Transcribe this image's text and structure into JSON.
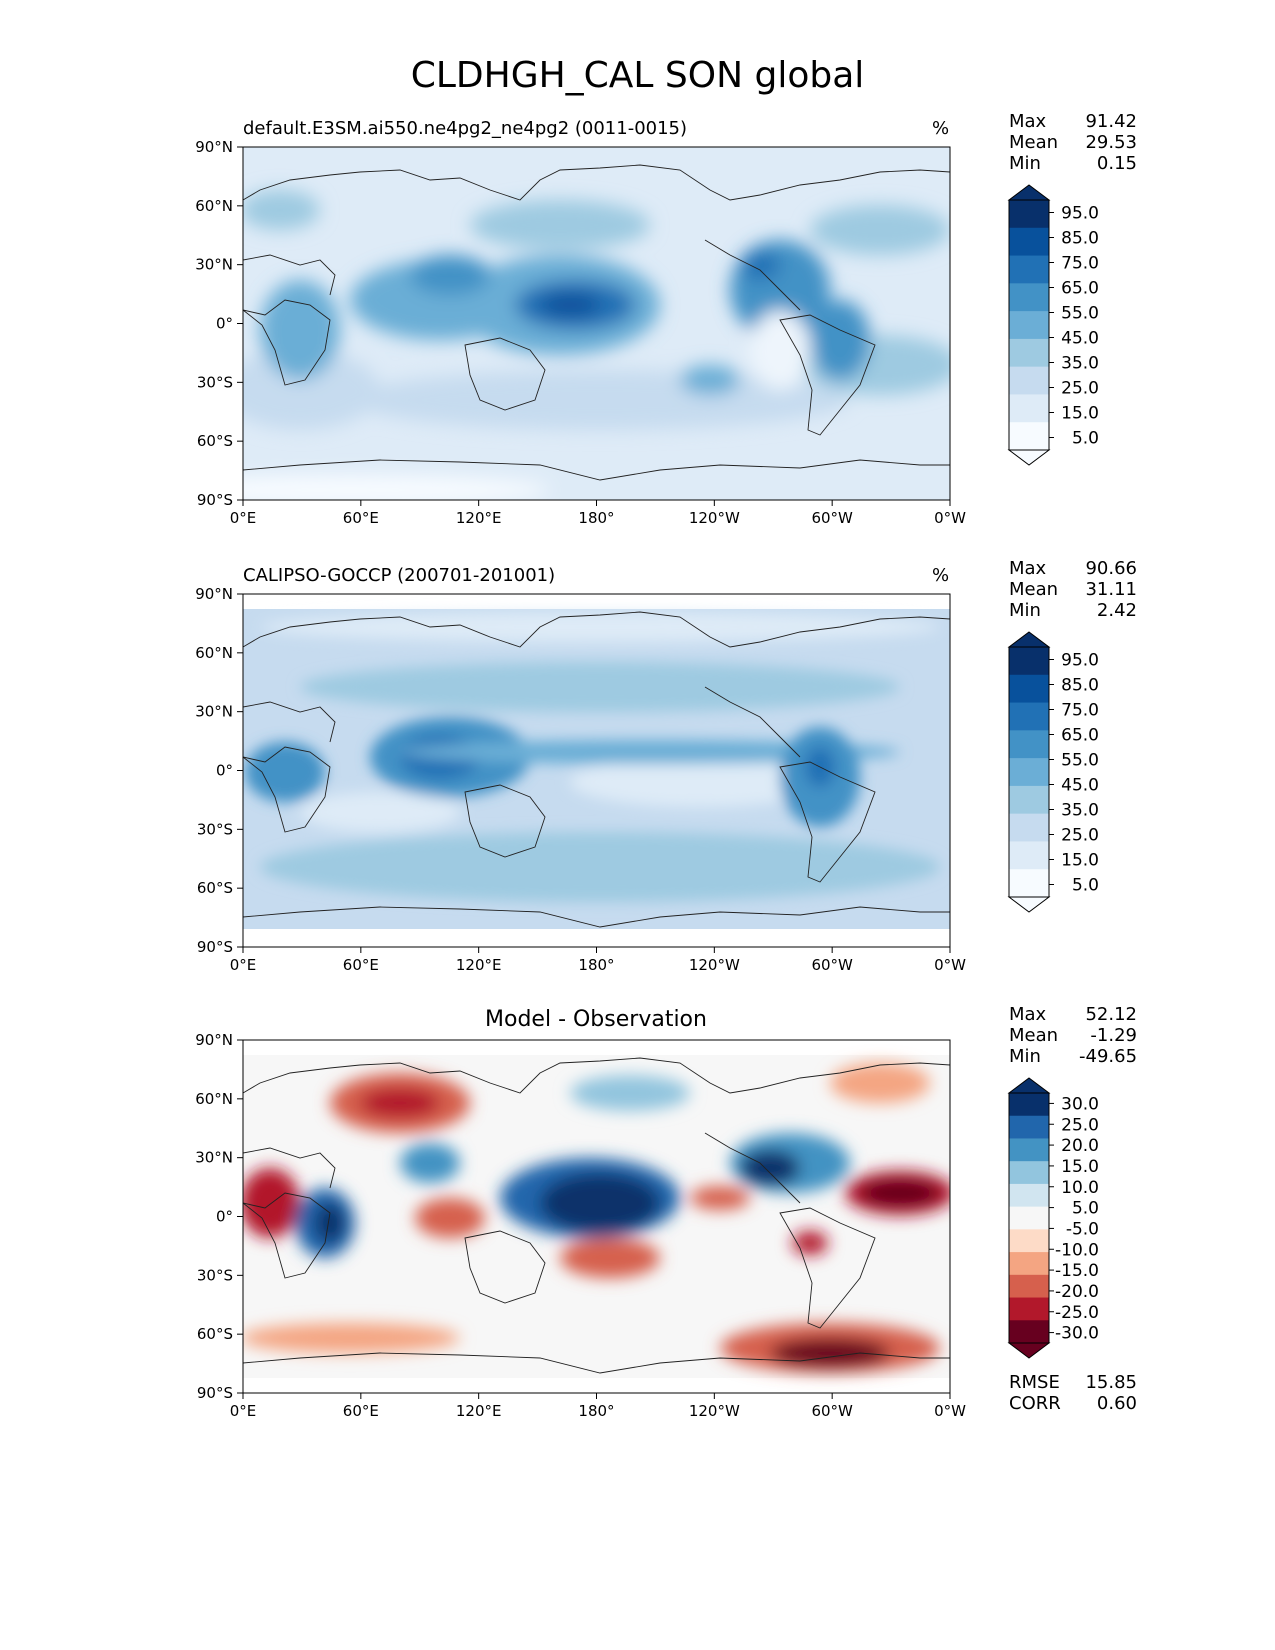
{
  "title": "CLDHGH_CAL SON global",
  "panels": [
    {
      "title_left": "default.E3SM.ai550.ne4pg2_ne4pg2 (0011-0015)",
      "title_right": "%",
      "title_center": "",
      "stats": [
        {
          "label": "Max",
          "value": "91.42"
        },
        {
          "label": "Mean",
          "value": "29.53"
        },
        {
          "label": "Min",
          "value": "0.15"
        }
      ],
      "colorbar": {
        "labels": [
          "95.0",
          "85.0",
          "75.0",
          "65.0",
          "55.0",
          "45.0",
          "35.0",
          "25.0",
          "15.0",
          "5.0"
        ],
        "colors": [
          "#08306b",
          "#08519c",
          "#2171b5",
          "#4292c6",
          "#6baed6",
          "#9ecae1",
          "#c6dbef",
          "#deebf7",
          "#f7fbff"
        ]
      },
      "extra_stats": []
    },
    {
      "title_left": "CALIPSO-GOCCP (200701-201001)",
      "title_right": "%",
      "title_center": "",
      "stats": [
        {
          "label": "Max",
          "value": "90.66"
        },
        {
          "label": "Mean",
          "value": "31.11"
        },
        {
          "label": "Min",
          "value": "2.42"
        }
      ],
      "colorbar": {
        "labels": [
          "95.0",
          "85.0",
          "75.0",
          "65.0",
          "55.0",
          "45.0",
          "35.0",
          "25.0",
          "15.0",
          "5.0"
        ],
        "colors": [
          "#08306b",
          "#08519c",
          "#2171b5",
          "#4292c6",
          "#6baed6",
          "#9ecae1",
          "#c6dbef",
          "#deebf7",
          "#f7fbff"
        ]
      },
      "extra_stats": []
    },
    {
      "title_left": "",
      "title_right": "",
      "title_center": "Model - Observation",
      "stats": [
        {
          "label": "Max",
          "value": "52.12"
        },
        {
          "label": "Mean",
          "value": "-1.29"
        },
        {
          "label": "Min",
          "value": "-49.65"
        }
      ],
      "colorbar": {
        "labels": [
          "30.0",
          "25.0",
          "20.0",
          "15.0",
          "10.0",
          "5.0",
          "-5.0",
          "-10.0",
          "-15.0",
          "-20.0",
          "-25.0",
          "-30.0"
        ],
        "colors": [
          "#08306b",
          "#2166ac",
          "#4393c3",
          "#92c5de",
          "#d1e5f0",
          "#f7f7f7",
          "#fddbc7",
          "#f4a582",
          "#d6604d",
          "#b2182b",
          "#67001f"
        ]
      },
      "extra_stats": [
        {
          "label": "RMSE",
          "value": "15.85"
        },
        {
          "label": "CORR",
          "value": "0.60"
        }
      ]
    }
  ],
  "axes": {
    "yticks": [
      "90°N",
      "60°N",
      "30°N",
      "0°",
      "30°S",
      "60°S",
      "90°S"
    ],
    "xticks": [
      "0°E",
      "60°E",
      "120°E",
      "180°",
      "120°W",
      "60°W",
      "0°W"
    ]
  },
  "colors": {
    "blue_palette": [
      "#f7fbff",
      "#deebf7",
      "#c6dbef",
      "#9ecae1",
      "#6baed6",
      "#4292c6",
      "#2171b5",
      "#08519c",
      "#08306b"
    ],
    "diverging_palette": [
      "#67001f",
      "#b2182b",
      "#d6604d",
      "#f4a582",
      "#fddbc7",
      "#f7f7f7",
      "#d1e5f0",
      "#92c5de",
      "#4393c3",
      "#2166ac",
      "#08306b"
    ]
  }
}
